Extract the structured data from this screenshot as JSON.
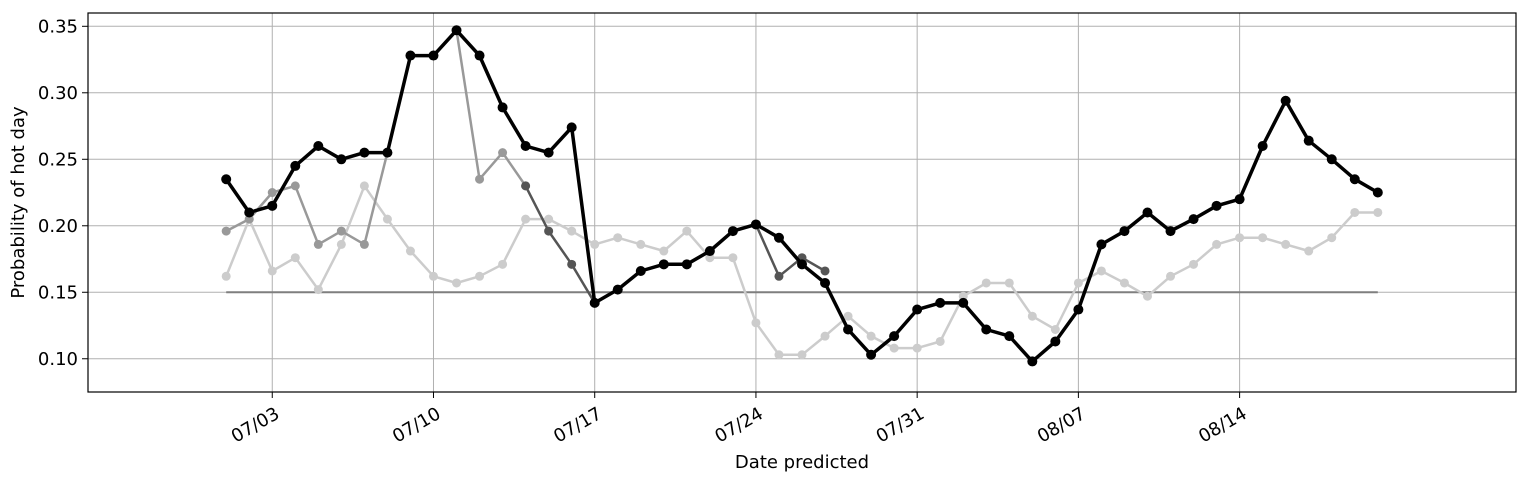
{
  "chart_data": {
    "type": "line",
    "xlabel": "Date predicted",
    "ylabel": "Probability of hot day",
    "xlim": [
      "2023-06-25",
      "2023-08-26"
    ],
    "ylim": [
      0.075,
      0.36
    ],
    "grid": true,
    "x_ticks": [
      "2023-07-03",
      "2023-07-10",
      "2023-07-17",
      "2023-07-24",
      "2023-07-31",
      "2023-08-07",
      "2023-08-14"
    ],
    "x_tick_labels": [
      "07/03",
      "07/10",
      "07/17",
      "07/24",
      "07/31",
      "08/07",
      "08/14"
    ],
    "y_ticks": [
      0.1,
      0.15,
      0.2,
      0.25,
      0.3,
      0.35
    ],
    "y_tick_labels": [
      "0.10",
      "0.15",
      "0.20",
      "0.25",
      "0.30",
      "0.35"
    ],
    "reference_line": {
      "y": 0.15,
      "x_start": "2023-07-01",
      "x_end": "2023-08-20",
      "color": "#7f7f7f"
    },
    "series": [
      {
        "color": "#cccccc",
        "points": [
          [
            "2023-07-01",
            0.162
          ],
          [
            "2023-07-02",
            0.205
          ],
          [
            "2023-07-03",
            0.166
          ],
          [
            "2023-07-04",
            0.176
          ],
          [
            "2023-07-05",
            0.152
          ],
          [
            "2023-07-06",
            0.186
          ],
          [
            "2023-07-07",
            0.23
          ],
          [
            "2023-07-08",
            0.205
          ],
          [
            "2023-07-09",
            0.181
          ],
          [
            "2023-07-10",
            0.162
          ],
          [
            "2023-07-11",
            0.157
          ],
          [
            "2023-07-12",
            0.162
          ],
          [
            "2023-07-13",
            0.171
          ],
          [
            "2023-07-14",
            0.205
          ],
          [
            "2023-07-15",
            0.205
          ],
          [
            "2023-07-16",
            0.196
          ],
          [
            "2023-07-17",
            0.186
          ],
          [
            "2023-07-18",
            0.191
          ],
          [
            "2023-07-19",
            0.186
          ],
          [
            "2023-07-20",
            0.181
          ],
          [
            "2023-07-21",
            0.196
          ],
          [
            "2023-07-22",
            0.176
          ],
          [
            "2023-07-23",
            0.176
          ],
          [
            "2023-07-24",
            0.127
          ],
          [
            "2023-07-25",
            0.103
          ],
          [
            "2023-07-26",
            0.103
          ],
          [
            "2023-07-27",
            0.117
          ],
          [
            "2023-07-28",
            0.132
          ],
          [
            "2023-07-29",
            0.117
          ],
          [
            "2023-07-30",
            0.108
          ],
          [
            "2023-07-31",
            0.108
          ],
          [
            "2023-08-01",
            0.113
          ],
          [
            "2023-08-02",
            0.147
          ],
          [
            "2023-08-03",
            0.157
          ],
          [
            "2023-08-04",
            0.157
          ],
          [
            "2023-08-05",
            0.132
          ],
          [
            "2023-08-06",
            0.122
          ],
          [
            "2023-08-07",
            0.157
          ],
          [
            "2023-08-08",
            0.166
          ],
          [
            "2023-08-09",
            0.157
          ],
          [
            "2023-08-10",
            0.147
          ],
          [
            "2023-08-11",
            0.162
          ],
          [
            "2023-08-12",
            0.171
          ],
          [
            "2023-08-13",
            0.186
          ],
          [
            "2023-08-14",
            0.191
          ],
          [
            "2023-08-15",
            0.191
          ],
          [
            "2023-08-16",
            0.186
          ],
          [
            "2023-08-17",
            0.181
          ],
          [
            "2023-08-18",
            0.191
          ],
          [
            "2023-08-19",
            0.21
          ],
          [
            "2023-08-20",
            0.21
          ]
        ]
      },
      {
        "color": "#999999",
        "points": [
          [
            "2023-07-01",
            0.196
          ],
          [
            "2023-07-02",
            0.205
          ],
          [
            "2023-07-03",
            0.225
          ],
          [
            "2023-07-04",
            0.23
          ],
          [
            "2023-07-05",
            0.186
          ],
          [
            "2023-07-06",
            0.196
          ],
          [
            "2023-07-07",
            0.186
          ],
          [
            "2023-07-08",
            0.255
          ],
          [
            "2023-07-09",
            0.328
          ],
          [
            "2023-07-10",
            0.328
          ],
          [
            "2023-07-11",
            0.347
          ],
          [
            "2023-07-12",
            0.235
          ],
          [
            "2023-07-13",
            0.255
          ],
          [
            "2023-07-14",
            0.23
          ]
        ]
      },
      {
        "color": "#555555",
        "points": [
          [
            "2023-07-14",
            0.23
          ],
          [
            "2023-07-15",
            0.196
          ],
          [
            "2023-07-16",
            0.171
          ],
          [
            "2023-07-17",
            0.142
          ],
          [
            "2023-07-18",
            0.152
          ],
          [
            "2023-07-19",
            0.166
          ],
          [
            "2023-07-20",
            0.171
          ],
          [
            "2023-07-21",
            0.171
          ],
          [
            "2023-07-22",
            0.181
          ],
          [
            "2023-07-23",
            0.196
          ],
          [
            "2023-07-24",
            0.201
          ],
          [
            "2023-07-25",
            0.162
          ],
          [
            "2023-07-26",
            0.176
          ],
          [
            "2023-07-27",
            0.166
          ]
        ]
      },
      {
        "color": "#000000",
        "points": [
          [
            "2023-07-01",
            0.235
          ],
          [
            "2023-07-02",
            0.21
          ],
          [
            "2023-07-03",
            0.215
          ],
          [
            "2023-07-04",
            0.245
          ],
          [
            "2023-07-05",
            0.26
          ],
          [
            "2023-07-06",
            0.25
          ],
          [
            "2023-07-07",
            0.255
          ],
          [
            "2023-07-08",
            0.255
          ],
          [
            "2023-07-09",
            0.328
          ],
          [
            "2023-07-10",
            0.328
          ],
          [
            "2023-07-11",
            0.347
          ],
          [
            "2023-07-12",
            0.328
          ],
          [
            "2023-07-13",
            0.289
          ],
          [
            "2023-07-14",
            0.26
          ],
          [
            "2023-07-15",
            0.255
          ],
          [
            "2023-07-16",
            0.274
          ],
          [
            "2023-07-17",
            0.142
          ],
          [
            "2023-07-18",
            0.152
          ],
          [
            "2023-07-19",
            0.166
          ],
          [
            "2023-07-20",
            0.171
          ],
          [
            "2023-07-21",
            0.171
          ],
          [
            "2023-07-22",
            0.181
          ],
          [
            "2023-07-23",
            0.196
          ],
          [
            "2023-07-24",
            0.201
          ],
          [
            "2023-07-25",
            0.191
          ],
          [
            "2023-07-26",
            0.171
          ],
          [
            "2023-07-27",
            0.157
          ],
          [
            "2023-07-28",
            0.122
          ],
          [
            "2023-07-29",
            0.103
          ],
          [
            "2023-07-30",
            0.117
          ],
          [
            "2023-07-31",
            0.137
          ],
          [
            "2023-08-01",
            0.142
          ],
          [
            "2023-08-02",
            0.142
          ],
          [
            "2023-08-03",
            0.122
          ],
          [
            "2023-08-04",
            0.117
          ],
          [
            "2023-08-05",
            0.098
          ],
          [
            "2023-08-06",
            0.113
          ],
          [
            "2023-08-07",
            0.137
          ],
          [
            "2023-08-08",
            0.186
          ],
          [
            "2023-08-09",
            0.196
          ],
          [
            "2023-08-10",
            0.21
          ],
          [
            "2023-08-11",
            0.196
          ],
          [
            "2023-08-12",
            0.205
          ],
          [
            "2023-08-13",
            0.215
          ],
          [
            "2023-08-14",
            0.22
          ],
          [
            "2023-08-15",
            0.26
          ],
          [
            "2023-08-16",
            0.294
          ],
          [
            "2023-08-17",
            0.264
          ],
          [
            "2023-08-18",
            0.25
          ],
          [
            "2023-08-19",
            0.235
          ],
          [
            "2023-08-20",
            0.225
          ]
        ]
      }
    ]
  }
}
